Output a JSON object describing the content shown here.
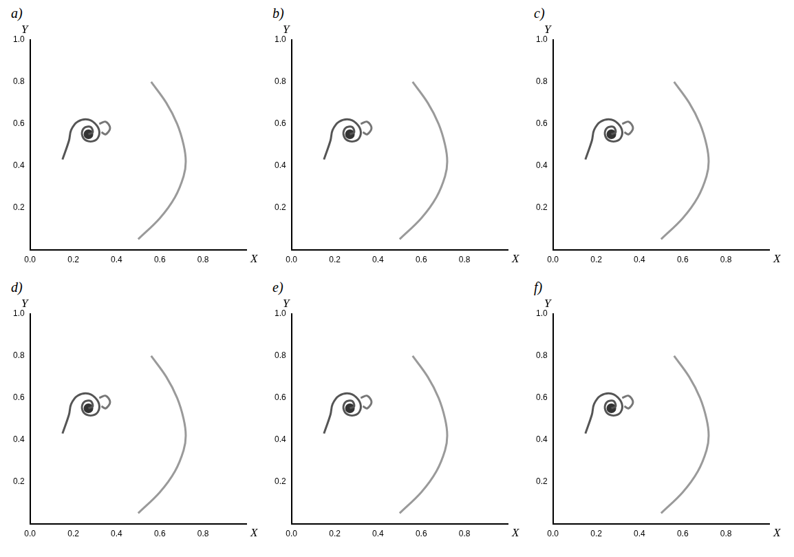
{
  "chart_data": [
    {
      "type": "scatter",
      "title": "a)",
      "x_label": "X",
      "y_label": "Y",
      "grid": false,
      "xlim": [
        0,
        1
      ],
      "ylim": [
        0,
        1
      ],
      "xticks": [
        {
          "value": 0,
          "label": "0.0"
        },
        0.2,
        0.4,
        0.6,
        0.8
      ],
      "yticks": [
        0.2,
        0.4,
        0.6,
        0.8,
        {
          "value": 1,
          "label": "1.0"
        }
      ],
      "series": [
        {
          "color": "#9a9a9a",
          "marker": "none",
          "line_style": "solid",
          "x": [
            0.5,
            0.6,
            0.67,
            0.71,
            0.72,
            0.71,
            0.68,
            0.63,
            0.56
          ],
          "values": [
            0.05,
            0.15,
            0.25,
            0.35,
            0.42,
            0.5,
            0.6,
            0.7,
            0.8
          ]
        },
        {
          "color": "#555555",
          "marker": "none",
          "line_style": "solid",
          "x": [
            0.27,
            0.29,
            0.28,
            0.25,
            0.24,
            0.26,
            0.3,
            0.32,
            0.31,
            0.27,
            0.22,
            0.19,
            0.18,
            0.15
          ],
          "values": [
            0.55,
            0.56,
            0.585,
            0.58,
            0.55,
            0.52,
            0.52,
            0.55,
            0.59,
            0.62,
            0.61,
            0.57,
            0.52,
            0.43
          ]
        },
        {
          "color": "#777777",
          "marker": "none",
          "line_style": "solid",
          "x": [
            0.32,
            0.35,
            0.37,
            0.35,
            0.33
          ],
          "values": [
            0.6,
            0.61,
            0.58,
            0.55,
            0.56
          ]
        },
        {
          "color": "#333333",
          "marker": "circle",
          "line_style": "none",
          "x": [
            0.27
          ],
          "values": [
            0.55
          ]
        }
      ]
    },
    {
      "type": "scatter",
      "title": "b)",
      "x_label": "X",
      "y_label": "Y",
      "grid": false,
      "xlim": [
        0,
        1
      ],
      "ylim": [
        0,
        1
      ],
      "xticks": [
        {
          "value": 0,
          "label": "0.0"
        },
        0.2,
        0.4,
        0.6,
        0.8
      ],
      "yticks": [
        0.2,
        0.4,
        0.6,
        0.8,
        {
          "value": 1,
          "label": "1.0"
        }
      ],
      "series": [
        {
          "color": "#9a9a9a",
          "marker": "none",
          "line_style": "solid",
          "x": [
            0.5,
            0.6,
            0.67,
            0.71,
            0.72,
            0.71,
            0.68,
            0.63,
            0.56
          ],
          "values": [
            0.05,
            0.15,
            0.25,
            0.35,
            0.42,
            0.5,
            0.6,
            0.7,
            0.8
          ]
        },
        {
          "color": "#555555",
          "marker": "none",
          "line_style": "solid",
          "x": [
            0.27,
            0.29,
            0.28,
            0.25,
            0.24,
            0.26,
            0.3,
            0.32,
            0.31,
            0.27,
            0.22,
            0.19,
            0.18,
            0.15
          ],
          "values": [
            0.55,
            0.56,
            0.585,
            0.58,
            0.55,
            0.52,
            0.52,
            0.55,
            0.59,
            0.62,
            0.61,
            0.57,
            0.52,
            0.43
          ]
        },
        {
          "color": "#777777",
          "marker": "none",
          "line_style": "solid",
          "x": [
            0.32,
            0.35,
            0.37,
            0.35,
            0.33
          ],
          "values": [
            0.6,
            0.61,
            0.58,
            0.55,
            0.56
          ]
        },
        {
          "color": "#333333",
          "marker": "circle",
          "line_style": "none",
          "x": [
            0.27
          ],
          "values": [
            0.55
          ]
        }
      ]
    },
    {
      "type": "scatter",
      "title": "c)",
      "x_label": "X",
      "y_label": "Y",
      "grid": false,
      "xlim": [
        0,
        1
      ],
      "ylim": [
        0,
        1
      ],
      "xticks": [
        {
          "value": 0,
          "label": "0.0"
        },
        0.2,
        0.4,
        0.6,
        0.8
      ],
      "yticks": [
        0.2,
        0.4,
        0.6,
        0.8,
        {
          "value": 1,
          "label": "1.0"
        }
      ],
      "series": [
        {
          "color": "#9a9a9a",
          "marker": "none",
          "line_style": "solid",
          "x": [
            0.5,
            0.6,
            0.67,
            0.71,
            0.72,
            0.71,
            0.68,
            0.63,
            0.56
          ],
          "values": [
            0.05,
            0.15,
            0.25,
            0.35,
            0.42,
            0.5,
            0.6,
            0.7,
            0.8
          ]
        },
        {
          "color": "#555555",
          "marker": "none",
          "line_style": "solid",
          "x": [
            0.27,
            0.29,
            0.28,
            0.25,
            0.24,
            0.26,
            0.3,
            0.32,
            0.31,
            0.27,
            0.22,
            0.19,
            0.18,
            0.15
          ],
          "values": [
            0.55,
            0.56,
            0.585,
            0.58,
            0.55,
            0.52,
            0.52,
            0.55,
            0.59,
            0.62,
            0.61,
            0.57,
            0.52,
            0.43
          ]
        },
        {
          "color": "#777777",
          "marker": "none",
          "line_style": "solid",
          "x": [
            0.32,
            0.35,
            0.37,
            0.35,
            0.33
          ],
          "values": [
            0.6,
            0.61,
            0.58,
            0.55,
            0.56
          ]
        },
        {
          "color": "#333333",
          "marker": "circle",
          "line_style": "none",
          "x": [
            0.27
          ],
          "values": [
            0.55
          ]
        }
      ]
    },
    {
      "type": "scatter",
      "title": "d)",
      "x_label": "X",
      "y_label": "Y",
      "grid": false,
      "xlim": [
        0,
        1
      ],
      "ylim": [
        0,
        1
      ],
      "xticks": [
        {
          "value": 0,
          "label": "0.0"
        },
        0.2,
        0.4,
        0.6,
        0.8
      ],
      "yticks": [
        0.2,
        0.4,
        0.6,
        0.8,
        {
          "value": 1,
          "label": "1.0"
        }
      ],
      "series": [
        {
          "color": "#9a9a9a",
          "marker": "none",
          "line_style": "solid",
          "x": [
            0.5,
            0.6,
            0.67,
            0.71,
            0.72,
            0.71,
            0.68,
            0.63,
            0.56
          ],
          "values": [
            0.05,
            0.15,
            0.25,
            0.35,
            0.42,
            0.5,
            0.6,
            0.7,
            0.8
          ]
        },
        {
          "color": "#555555",
          "marker": "none",
          "line_style": "solid",
          "x": [
            0.27,
            0.29,
            0.28,
            0.25,
            0.24,
            0.26,
            0.3,
            0.32,
            0.31,
            0.27,
            0.22,
            0.19,
            0.18,
            0.15
          ],
          "values": [
            0.55,
            0.56,
            0.585,
            0.58,
            0.55,
            0.52,
            0.52,
            0.55,
            0.59,
            0.62,
            0.61,
            0.57,
            0.52,
            0.43
          ]
        },
        {
          "color": "#777777",
          "marker": "none",
          "line_style": "solid",
          "x": [
            0.32,
            0.35,
            0.37,
            0.35,
            0.33
          ],
          "values": [
            0.6,
            0.61,
            0.58,
            0.55,
            0.56
          ]
        },
        {
          "color": "#333333",
          "marker": "circle",
          "line_style": "none",
          "x": [
            0.27
          ],
          "values": [
            0.55
          ]
        }
      ]
    },
    {
      "type": "scatter",
      "title": "e)",
      "x_label": "X",
      "y_label": "Y",
      "grid": false,
      "xlim": [
        0,
        1
      ],
      "ylim": [
        0,
        1
      ],
      "xticks": [
        {
          "value": 0,
          "label": "0.0"
        },
        0.2,
        0.4,
        0.6,
        0.8
      ],
      "yticks": [
        0.2,
        0.4,
        0.6,
        0.8,
        {
          "value": 1,
          "label": "1.0"
        }
      ],
      "series": [
        {
          "color": "#9a9a9a",
          "marker": "none",
          "line_style": "solid",
          "x": [
            0.5,
            0.6,
            0.67,
            0.71,
            0.72,
            0.71,
            0.68,
            0.63,
            0.56
          ],
          "values": [
            0.05,
            0.15,
            0.25,
            0.35,
            0.42,
            0.5,
            0.6,
            0.7,
            0.8
          ]
        },
        {
          "color": "#555555",
          "marker": "none",
          "line_style": "solid",
          "x": [
            0.27,
            0.29,
            0.28,
            0.25,
            0.24,
            0.26,
            0.3,
            0.32,
            0.31,
            0.27,
            0.22,
            0.19,
            0.18,
            0.15
          ],
          "values": [
            0.55,
            0.56,
            0.585,
            0.58,
            0.55,
            0.52,
            0.52,
            0.55,
            0.59,
            0.62,
            0.61,
            0.57,
            0.52,
            0.43
          ]
        },
        {
          "color": "#777777",
          "marker": "none",
          "line_style": "solid",
          "x": [
            0.32,
            0.35,
            0.37,
            0.35,
            0.33
          ],
          "values": [
            0.6,
            0.61,
            0.58,
            0.55,
            0.56
          ]
        },
        {
          "color": "#333333",
          "marker": "circle",
          "line_style": "none",
          "x": [
            0.27
          ],
          "values": [
            0.55
          ]
        }
      ]
    },
    {
      "type": "scatter",
      "title": "f)",
      "x_label": "X",
      "y_label": "Y",
      "grid": false,
      "xlim": [
        0,
        1
      ],
      "ylim": [
        0,
        1
      ],
      "xticks": [
        {
          "value": 0,
          "label": "0.0"
        },
        0.2,
        0.4,
        0.6,
        0.8
      ],
      "yticks": [
        0.2,
        0.4,
        0.6,
        0.8,
        {
          "value": 1,
          "label": "1.0"
        }
      ],
      "series": [
        {
          "color": "#9a9a9a",
          "marker": "none",
          "line_style": "solid",
          "x": [
            0.5,
            0.6,
            0.67,
            0.71,
            0.72,
            0.71,
            0.68,
            0.63,
            0.56
          ],
          "values": [
            0.05,
            0.15,
            0.25,
            0.35,
            0.42,
            0.5,
            0.6,
            0.7,
            0.8
          ]
        },
        {
          "color": "#555555",
          "marker": "none",
          "line_style": "solid",
          "x": [
            0.27,
            0.29,
            0.28,
            0.25,
            0.24,
            0.26,
            0.3,
            0.32,
            0.31,
            0.27,
            0.22,
            0.19,
            0.18,
            0.15
          ],
          "values": [
            0.55,
            0.56,
            0.585,
            0.58,
            0.55,
            0.52,
            0.52,
            0.55,
            0.59,
            0.62,
            0.61,
            0.57,
            0.52,
            0.43
          ]
        },
        {
          "color": "#777777",
          "marker": "none",
          "line_style": "solid",
          "x": [
            0.32,
            0.35,
            0.37,
            0.35,
            0.33
          ],
          "values": [
            0.6,
            0.61,
            0.58,
            0.55,
            0.56
          ]
        },
        {
          "color": "#333333",
          "marker": "circle",
          "line_style": "none",
          "x": [
            0.27
          ],
          "values": [
            0.55
          ]
        }
      ]
    }
  ]
}
